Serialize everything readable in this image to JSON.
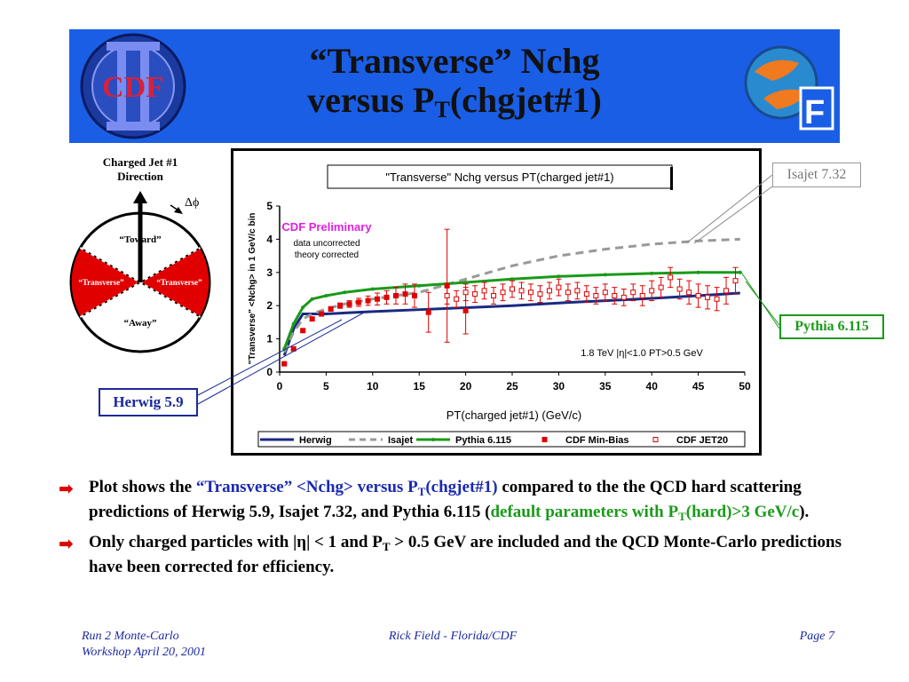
{
  "slide": {
    "title_line1": "“Transverse” Nchg",
    "title_line2_main": "versus P",
    "title_line2_sub": "T",
    "title_line2_rest": "(chgjet#1)"
  },
  "diagram": {
    "jet_direction_label_1": "Charged Jet #1",
    "jet_direction_label_2": "Direction",
    "delta_phi": "Δϕ",
    "region_toward": "“Toward”",
    "region_transverse_left": "“Transverse”",
    "region_transverse_right": "“Transverse”",
    "region_away": "“Away”"
  },
  "callouts": {
    "isajet": "Isajet 7.32",
    "pythia": "Pythia 6.115",
    "herwig": "Herwig 5.9"
  },
  "chart_data": {
    "type": "line",
    "title": "\"Transverse\" Nchg versus PT(charged jet#1)",
    "xlabel": "PT(charged jet#1)  (GeV/c)",
    "ylabel": "\"Transverse\" <Nchg> in 1 GeV/c bin",
    "xlim": [
      0,
      50
    ],
    "ylim": [
      0,
      5
    ],
    "xticks": [
      0,
      5,
      10,
      15,
      20,
      25,
      30,
      35,
      40,
      45,
      50
    ],
    "yticks": [
      0,
      1,
      2,
      3,
      4,
      5
    ],
    "annotation_prelim": "CDF Preliminary",
    "annotation_data": "data uncorrected",
    "annotation_theory": "theory corrected",
    "annotation_cuts": "1.8 TeV |η|<1.0 PT>0.5 GeV",
    "legend_position": "bottom",
    "series": [
      {
        "name": "Herwig",
        "kind": "line",
        "color": "#1a2a80",
        "x": [
          0.5,
          1.5,
          2.5,
          3.5,
          5,
          7,
          10,
          15,
          20,
          25,
          30,
          35,
          40,
          45,
          49.5
        ],
        "y": [
          0.5,
          1.3,
          1.75,
          1.75,
          1.75,
          1.78,
          1.82,
          1.88,
          1.94,
          2.0,
          2.08,
          2.15,
          2.22,
          2.3,
          2.38
        ]
      },
      {
        "name": "Isajet",
        "kind": "dashed",
        "color": "#999999",
        "x": [
          0.5,
          1.5,
          2.5,
          3.5,
          5,
          7,
          10,
          15,
          20,
          25,
          30,
          35,
          40,
          45,
          49.5
        ],
        "y": [
          0.6,
          1.2,
          1.6,
          1.75,
          1.9,
          2.05,
          2.2,
          2.4,
          2.8,
          3.2,
          3.5,
          3.7,
          3.85,
          3.95,
          4.0
        ]
      },
      {
        "name": "Pythia 6.115",
        "kind": "line-dots",
        "color": "#1a9a1a",
        "x": [
          0.5,
          1.5,
          2.5,
          3.5,
          5,
          7,
          10,
          15,
          20,
          25,
          30,
          35,
          40,
          45,
          49.5
        ],
        "y": [
          0.7,
          1.45,
          1.95,
          2.2,
          2.3,
          2.4,
          2.5,
          2.6,
          2.7,
          2.8,
          2.88,
          2.93,
          2.97,
          3.0,
          3.0
        ]
      },
      {
        "name": "CDF Min-Bias",
        "kind": "filled-squares",
        "color": "#e00000",
        "x": [
          0.5,
          1.5,
          2.5,
          3.5,
          4.5,
          5.5,
          6.5,
          7.5,
          8.5,
          9.5,
          10.5,
          11.5,
          12.5,
          13.5,
          14.5,
          16,
          18,
          20
        ],
        "y": [
          0.25,
          0.7,
          1.25,
          1.6,
          1.75,
          1.9,
          2.0,
          2.05,
          2.1,
          2.15,
          2.2,
          2.25,
          2.3,
          2.35,
          2.3,
          1.8,
          2.6,
          1.85
        ],
        "err": [
          0.02,
          0.03,
          0.04,
          0.05,
          0.06,
          0.07,
          0.08,
          0.1,
          0.12,
          0.14,
          0.18,
          0.2,
          0.25,
          0.3,
          0.35,
          0.6,
          1.7,
          0.7
        ]
      },
      {
        "name": "CDF JET20",
        "kind": "open-squares",
        "color": "#e00000",
        "x": [
          18,
          19,
          20,
          21,
          22,
          23,
          24,
          25,
          26,
          27,
          28,
          29,
          30,
          31,
          32,
          33,
          34,
          35,
          36,
          37,
          38,
          39,
          40,
          41,
          42,
          43,
          44,
          45,
          46,
          47,
          48,
          49
        ],
        "y": [
          2.3,
          2.2,
          2.4,
          2.35,
          2.45,
          2.3,
          2.4,
          2.5,
          2.45,
          2.4,
          2.35,
          2.45,
          2.55,
          2.4,
          2.45,
          2.35,
          2.3,
          2.4,
          2.3,
          2.25,
          2.4,
          2.3,
          2.45,
          2.55,
          2.85,
          2.5,
          2.4,
          2.3,
          2.25,
          2.2,
          2.45,
          2.75
        ],
        "err": [
          0.25,
          0.25,
          0.25,
          0.25,
          0.25,
          0.25,
          0.25,
          0.25,
          0.25,
          0.25,
          0.25,
          0.25,
          0.25,
          0.25,
          0.25,
          0.25,
          0.25,
          0.25,
          0.25,
          0.25,
          0.25,
          0.3,
          0.3,
          0.3,
          0.3,
          0.3,
          0.35,
          0.35,
          0.35,
          0.35,
          0.4,
          0.4
        ]
      }
    ]
  },
  "bullets": [
    {
      "p1": "Plot shows the ",
      "p2_blue": "“Transverse” <Nchg> versus P",
      "p2_sub": "T",
      "p3_blue": "(chgjet#1)",
      "p4": " compared to the the QCD hard scattering predictions of Herwig 5.9, Isajet 7.32, and Pythia 6.115 (",
      "p5_green": "default parameters with P",
      "p5_sub": "T",
      "p6_green": "(hard)>3 GeV/c",
      "p7": ")."
    },
    {
      "p1": "Only charged particles with |η| < 1 and P",
      "p1_sub": "T",
      "p2": " > 0.5 GeV are included and the QCD Monte-Carlo predictions have been corrected for efficiency."
    }
  ],
  "footer": {
    "left_line1": "Run 2 Monte-Carlo",
    "left_line2": "Workshop April 20, 2001",
    "center": "Rick Field - Florida/CDF",
    "right": "Page 7"
  }
}
